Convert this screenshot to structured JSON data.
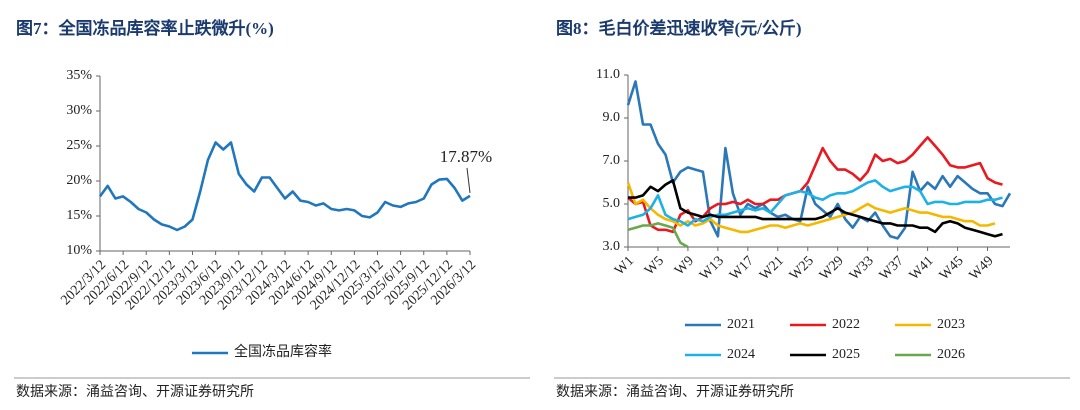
{
  "chart_data": [
    {
      "type": "line",
      "title": "图7：全国冻品库容率止跌微升(%)",
      "source": "数据来源：涌益咨询、开源证券研究所",
      "categories": [
        "2022/3/12",
        null,
        null,
        "2022/6/12",
        null,
        null,
        "2022/9/12",
        null,
        null,
        "2022/12/12",
        null,
        null,
        "2023/3/12",
        null,
        null,
        "2023/6/12",
        null,
        null,
        "2023/9/12",
        null,
        null,
        "2023/12/12",
        null,
        null,
        "2024/3/12",
        null,
        null,
        "2024/6/12",
        null,
        null,
        "2024/9/12",
        null,
        null,
        "2024/12/12",
        null,
        null,
        "2025/3/12",
        null,
        null,
        "2025/6/12",
        null,
        null,
        "2025/9/12",
        null,
        null,
        "2025/12/12",
        null,
        null,
        "2026/3/12"
      ],
      "series": [
        {
          "name": "全国冻品库容率",
          "color": "#2177bd",
          "values": [
            17.8,
            19.3,
            17.5,
            17.8,
            17,
            16,
            15.5,
            14.5,
            13.8,
            13.5,
            13,
            13.5,
            14.5,
            18.5,
            23,
            25.5,
            24.5,
            25.5,
            21,
            19.5,
            18.5,
            20.5,
            20.5,
            19,
            17.5,
            18.5,
            17.2,
            17,
            16.5,
            16.8,
            16,
            15.8,
            16,
            15.8,
            15,
            14.8,
            15.5,
            17,
            16.5,
            16.3,
            16.8,
            17,
            17.5,
            19.5,
            20.2,
            20.3,
            19,
            17.2,
            17.87
          ],
          "value_labels": [
            null,
            null,
            null,
            null,
            null,
            null,
            null,
            null,
            null,
            null,
            null,
            null,
            null,
            null,
            null,
            null,
            null,
            null,
            null,
            null,
            null,
            null,
            null,
            null,
            null,
            null,
            null,
            null,
            null,
            null,
            null,
            null,
            null,
            null,
            null,
            null,
            null,
            null,
            null,
            null,
            null,
            null,
            null,
            null,
            null,
            null,
            null,
            null,
            "17.87%"
          ]
        }
      ],
      "ylim": [
        10,
        35
      ],
      "yticks": [
        {
          "value": 10,
          "label": "10%"
        },
        {
          "value": 15,
          "label": "15%"
        },
        {
          "value": 20,
          "label": "20%"
        },
        {
          "value": 25,
          "label": "25%"
        },
        {
          "value": 30,
          "label": "30%"
        },
        {
          "value": 35,
          "label": "35%"
        }
      ]
    },
    {
      "type": "line",
      "title": "图8：毛白价差迅速收窄(元/公斤)",
      "source": "数据来源：涌益咨询、开源证券研究所",
      "categories": [
        "W1",
        null,
        null,
        null,
        "W5",
        null,
        null,
        null,
        "W9",
        null,
        null,
        null,
        "W13",
        null,
        null,
        null,
        "W17",
        null,
        null,
        null,
        "W21",
        null,
        null,
        null,
        "W25",
        null,
        null,
        null,
        "W29",
        null,
        null,
        null,
        "W33",
        null,
        null,
        null,
        "W37",
        null,
        null,
        null,
        "W41",
        null,
        null,
        null,
        "W45",
        null,
        null,
        null,
        "W49",
        null,
        null,
        null
      ],
      "series": [
        {
          "name": "2021",
          "color": "#2b78b8",
          "values": [
            9.6,
            10.7,
            8.7,
            8.7,
            7.8,
            7.3,
            6.0,
            6.5,
            6.7,
            6.6,
            6.5,
            4.2,
            3.5,
            7.6,
            5.5,
            4.5,
            5.0,
            4.8,
            5.0,
            4.6,
            4.4,
            4.5,
            4.3,
            4.2,
            5.8,
            5.0,
            4.7,
            4.4,
            5.0,
            4.3,
            3.9,
            4.4,
            4.2,
            4.6,
            4.0,
            3.5,
            3.4,
            3.9,
            6.5,
            5.6,
            6.0,
            5.7,
            6.3,
            5.8,
            6.3,
            6.0,
            5.7,
            5.5,
            5.5,
            5.0,
            4.9,
            5.5
          ]
        },
        {
          "name": "2022",
          "color": "#e8191f",
          "values": [
            5.3,
            5.0,
            5.1,
            4.0,
            3.8,
            3.8,
            3.7,
            4.5,
            4.7,
            4.2,
            4.4,
            4.8,
            5.0,
            5.0,
            5.1,
            5.0,
            5.2,
            5.0,
            5.0,
            5.2,
            5.2,
            5.4,
            5.5,
            5.6,
            6.0,
            6.8,
            7.6,
            7.0,
            6.6,
            6.6,
            6.4,
            6.1,
            6.5,
            7.3,
            7.0,
            7.1,
            6.9,
            7.0,
            7.3,
            7.7,
            8.1,
            7.7,
            7.3,
            6.8,
            6.7,
            6.7,
            6.8,
            6.9,
            6.2,
            6.0,
            5.9,
            null
          ]
        },
        {
          "name": "2023",
          "color": "#f5b800",
          "values": [
            6.0,
            5.0,
            5.2,
            4.8,
            4.5,
            4.3,
            4.2,
            4.0,
            4.2,
            4.0,
            4.1,
            4.3,
            4.0,
            3.9,
            3.8,
            3.7,
            3.7,
            3.8,
            3.9,
            4.0,
            4.0,
            3.9,
            4.0,
            4.1,
            4.0,
            4.1,
            4.2,
            4.3,
            4.4,
            4.5,
            4.6,
            4.8,
            5.0,
            4.8,
            4.7,
            4.6,
            4.7,
            4.8,
            4.7,
            4.6,
            4.6,
            4.5,
            4.4,
            4.4,
            4.3,
            4.2,
            4.2,
            4.0,
            4.0,
            4.1,
            null,
            null
          ]
        },
        {
          "name": "2024",
          "color": "#1eb1e6",
          "values": [
            4.3,
            4.4,
            4.5,
            4.8,
            5.4,
            4.5,
            4.3,
            4.2,
            4.0,
            4.3,
            4.2,
            4.4,
            4.5,
            4.5,
            4.6,
            4.7,
            4.8,
            4.7,
            4.8,
            4.6,
            5.0,
            5.4,
            5.5,
            5.6,
            5.5,
            5.3,
            5.2,
            5.4,
            5.5,
            5.5,
            5.6,
            5.8,
            6.0,
            6.1,
            5.8,
            5.6,
            5.7,
            5.8,
            5.8,
            5.6,
            5.0,
            5.1,
            5.1,
            5.0,
            5.0,
            5.1,
            5.1,
            5.1,
            5.2,
            5.2,
            5.3,
            null
          ]
        },
        {
          "name": "2025",
          "color": "#000000",
          "values": [
            5.3,
            5.3,
            5.4,
            5.8,
            5.6,
            5.9,
            6.1,
            4.8,
            4.6,
            4.5,
            4.4,
            4.5,
            4.4,
            4.4,
            4.4,
            4.4,
            4.4,
            4.4,
            4.3,
            4.3,
            4.3,
            4.3,
            4.3,
            4.3,
            4.3,
            4.3,
            4.4,
            4.6,
            4.8,
            4.6,
            4.5,
            4.4,
            4.3,
            4.2,
            4.1,
            4.1,
            4.0,
            4.0,
            4.0,
            3.9,
            3.9,
            3.7,
            4.1,
            4.2,
            4.1,
            3.9,
            3.8,
            3.7,
            3.6,
            3.5,
            3.6,
            null
          ]
        },
        {
          "name": "2026",
          "color": "#6aa84f",
          "values": [
            3.8,
            3.9,
            4.0,
            4.0,
            4.1,
            4.0,
            3.9,
            3.2,
            3.0,
            null,
            null,
            null,
            null,
            null,
            null,
            null,
            null,
            null,
            null,
            null,
            null,
            null,
            null,
            null,
            null,
            null,
            null,
            null,
            null,
            null,
            null,
            null,
            null,
            null,
            null,
            null,
            null,
            null,
            null,
            null,
            null,
            null,
            null,
            null,
            null,
            null,
            null,
            null,
            null,
            null,
            null,
            null
          ]
        }
      ],
      "ylim": [
        3,
        11
      ],
      "yticks": [
        {
          "value": 3,
          "label": "3.0"
        },
        {
          "value": 5,
          "label": "5.0"
        },
        {
          "value": 7,
          "label": "7.0"
        },
        {
          "value": 9,
          "label": "9.0"
        },
        {
          "value": 11,
          "label": "11.0"
        }
      ]
    }
  ]
}
